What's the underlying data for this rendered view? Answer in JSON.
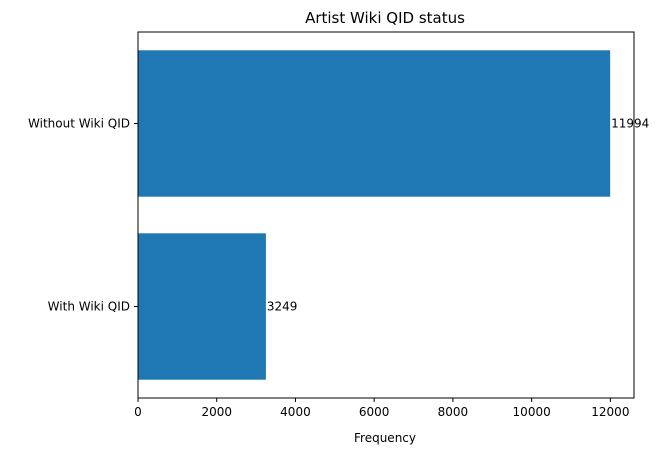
{
  "chart_data": {
    "type": "bar",
    "orientation": "horizontal",
    "title": "Artist Wiki QID status",
    "xlabel": "Frequency",
    "ylabel": "",
    "categories": [
      "Without Wiki QID",
      "With Wiki QID"
    ],
    "values": [
      11994,
      3249
    ],
    "data_labels": [
      "11994",
      "3249"
    ],
    "xlim": [
      0,
      12600
    ],
    "xticks": [
      0,
      2000,
      4000,
      6000,
      8000,
      10000,
      12000
    ],
    "xtick_labels": [
      "0",
      "2000",
      "4000",
      "6000",
      "8000",
      "10000",
      "12000"
    ],
    "grid": false,
    "legend": "none",
    "bar_color": "#1f77b4"
  }
}
